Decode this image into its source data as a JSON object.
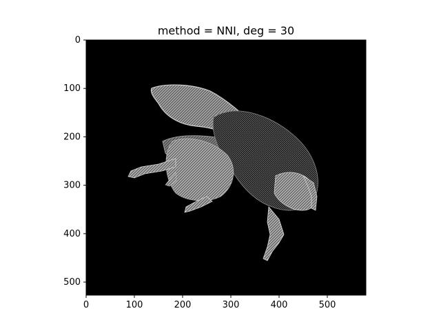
{
  "title": "method = NNI, deg = 30",
  "axes": {
    "x": {
      "ticks": [
        0,
        100,
        200,
        300,
        400,
        500
      ],
      "range": [
        0,
        580
      ]
    },
    "y": {
      "ticks": [
        0,
        100,
        200,
        300,
        400,
        500
      ],
      "range": [
        0,
        527
      ],
      "inverted": true
    }
  },
  "image": {
    "subject": "bumblebee",
    "rendering": "grayscale on black background",
    "background_color": "#000000",
    "subject_color": "#bdbdbd"
  },
  "colors": {
    "frame": "#000000",
    "page": "#ffffff"
  }
}
